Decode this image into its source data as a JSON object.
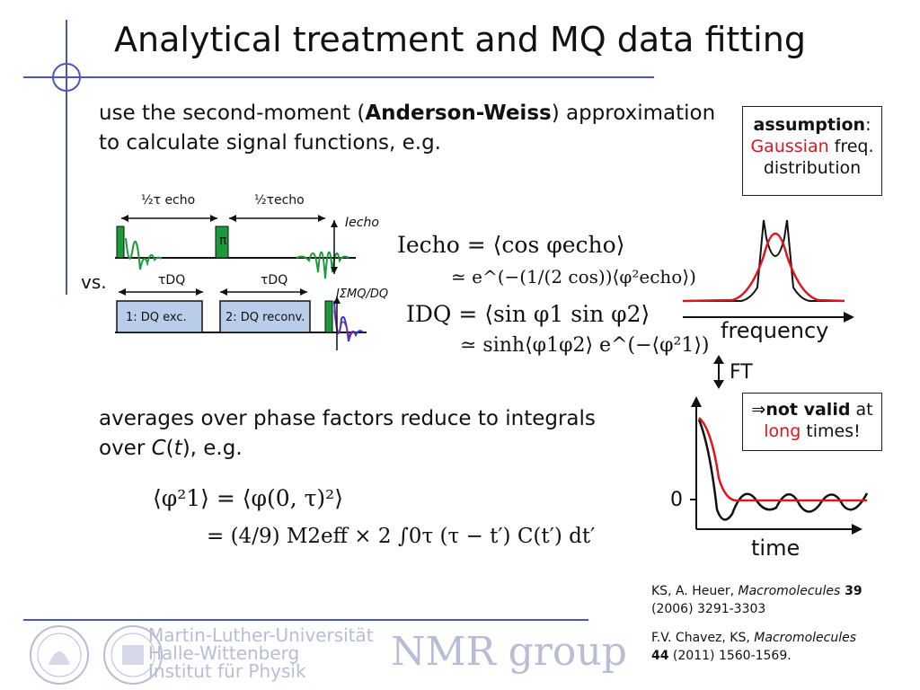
{
  "title": "Analytical treatment and MQ data fitting",
  "intro": {
    "line1_pre": "use the second-moment (",
    "line1_bold": "Anderson-Weiss",
    "line1_post": ") approximation",
    "line2": "to calculate signal functions, e.g."
  },
  "assumption_box": {
    "bold": "assumption",
    "colon": ":",
    "red": "Gaussian",
    "after_red": " freq.",
    "line3": "distribution"
  },
  "pulse_diagram": {
    "half_tau_echo_left": "½τ echo",
    "half_tau_echo_right": "½τecho",
    "pi_label": "π",
    "i_echo": "Iecho",
    "vs": "vs.",
    "tau_dq_left": "τDQ",
    "tau_dq_right": "τDQ",
    "block1": "1: DQ exc.",
    "block2": "2: DQ reconv.",
    "i_smq": "IΣMQ/DQ",
    "colors": {
      "green": "#1a9a3a",
      "dark_green": "#0d5e22",
      "block_fill": "#b9cdea",
      "blue": "#3a3ad0",
      "purple": "#7a2a9a"
    }
  },
  "equations": {
    "echo_line1": "Iecho = ⟨cos φecho⟩",
    "echo_line2": "≃ e^(−(1/(2 cos))⟨φ²echo⟩)",
    "dq_line1": "IDQ = ⟨sin φ1 sin φ2⟩",
    "dq_line2": "≃ sinh⟨φ1φ2⟩ e^(−⟨φ²1⟩)"
  },
  "frequency_plot": {
    "xlabel": "frequency",
    "colors": {
      "gaussian": "#e0141e",
      "pake": "#111111"
    }
  },
  "ft_label": "FT",
  "not_valid_box": {
    "arrow": "⇒",
    "bold": "not valid",
    "after_bold": " at",
    "red": "long",
    "after_red": " times!"
  },
  "time_plot": {
    "xlabel": "time",
    "zero_label": "0",
    "colors": {
      "gaussian": "#e0141e",
      "oscillating": "#111111"
    }
  },
  "averages_text": {
    "line1": "averages over phase factors reduce to integrals",
    "line2_pre": "over ",
    "line2_italic": "C",
    "line2_mid": "(",
    "line2_italic_t": "t",
    "line2_post": "), e.g."
  },
  "integral_eq": {
    "line1": "⟨φ²1⟩ = ⟨φ(0, τ)²⟩",
    "line2": "= (4/9) M2eff × 2 ∫0τ (τ − t′) C(t′) dt′"
  },
  "references": {
    "ref1_pre": "KS, A. Heuer, ",
    "ref1_journal": "Macromolecules",
    "ref1_vol": " 39",
    "ref1_rest": "(2006) 3291-3303",
    "ref2_pre": "F.V. Chavez, KS, ",
    "ref2_journal": "Macromolecules",
    "ref2_vol": "44",
    "ref2_rest": " (2011) 1560-1569."
  },
  "footer": {
    "uni_line1": "Martin-Luther-Universität",
    "uni_line2": "Halle-Wittenberg",
    "uni_line3": "Institut für Physik",
    "group": "NMR group",
    "color": "#b8bdd6"
  },
  "decor": {
    "line_color": "#4b56b8"
  }
}
